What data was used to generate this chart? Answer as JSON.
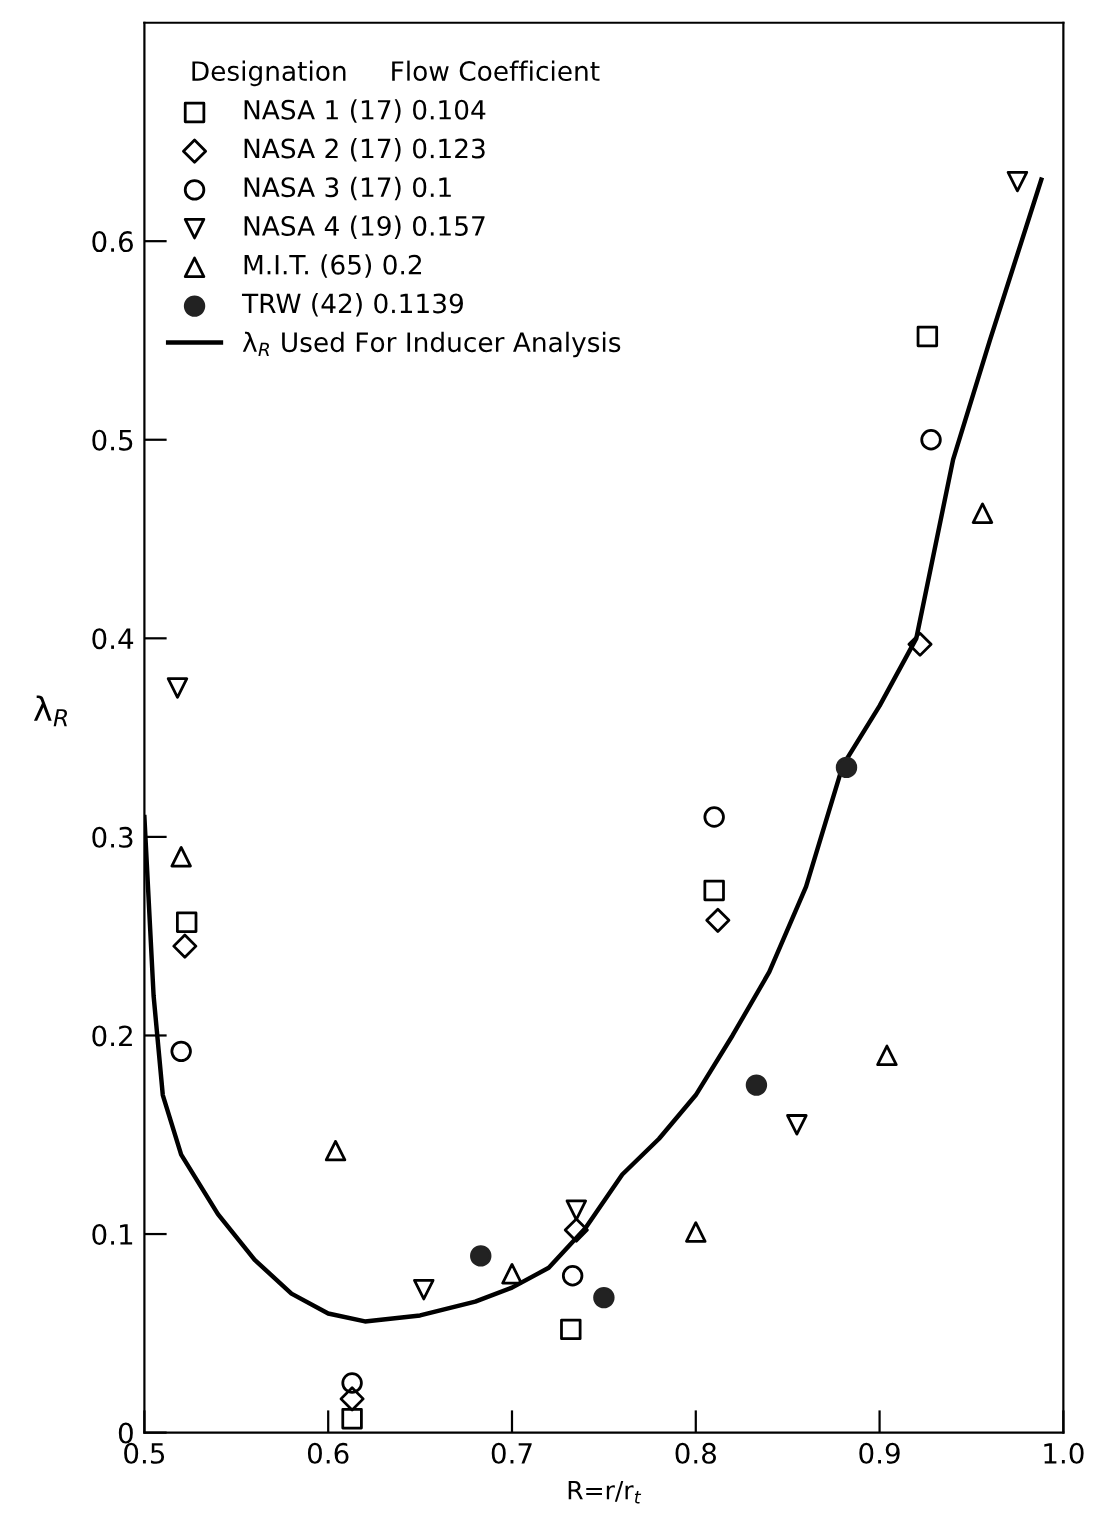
{
  "chart_data": {
    "type": "scatter",
    "xlabel": "R=r/r$_{t}$",
    "ylabel": "λ$_{R}$",
    "legend_title": "Designation     Flow Coefficient",
    "legend": "top left",
    "grid": false,
    "xlim": [
      0.5,
      1.0
    ],
    "ylim": [
      0,
      0.71
    ],
    "xticks": [
      0.5,
      0.6,
      0.7,
      0.8,
      0.9,
      {
        "value": 1,
        "label": "1.0"
      }
    ],
    "yticks": [
      0,
      0.1,
      0.2,
      0.3,
      0.4,
      0.5,
      0.6
    ],
    "series": [
      {
        "name": "NASA 1 (17) 0.104",
        "color": "#000000",
        "marker": "square",
        "x": [
          0.523,
          0.613,
          0.732,
          0.81,
          0.926
        ],
        "values": [
          0.257,
          0.007,
          0.052,
          0.273,
          0.552
        ]
      },
      {
        "name": "NASA 2 (17) 0.123",
        "color": "#000000",
        "marker": "diamond",
        "x": [
          0.522,
          0.613,
          0.735,
          0.812,
          0.922
        ],
        "values": [
          0.245,
          0.017,
          0.102,
          0.258,
          0.397
        ]
      },
      {
        "name": "NASA 3 (17) 0.1",
        "color": "#000000",
        "marker": "circle",
        "x": [
          0.52,
          0.613,
          0.733,
          0.81,
          0.928
        ],
        "values": [
          0.192,
          0.025,
          0.079,
          0.31,
          0.5
        ]
      },
      {
        "name": "NASA 4 (19) 0.157",
        "color": "#000000",
        "marker": "triangle_down",
        "x": [
          0.518,
          0.652,
          0.735,
          0.855,
          0.975
        ],
        "values": [
          0.375,
          0.072,
          0.112,
          0.155,
          0.63
        ]
      },
      {
        "name": "M.I.T. (65) 0.2",
        "color": "#000000",
        "marker": "triangle",
        "x": [
          0.52,
          0.604,
          0.7,
          0.8,
          0.904,
          0.956
        ],
        "values": [
          0.29,
          0.142,
          0.08,
          0.101,
          0.19,
          0.463
        ]
      },
      {
        "name": "TRW (42) 0.1139",
        "color": "#222222",
        "marker": "filled_circle",
        "x": [
          0.683,
          0.75,
          0.833,
          0.882
        ],
        "values": [
          0.089,
          0.068,
          0.175,
          0.335
        ]
      },
      {
        "name": "λ$_{R}$ Used For Inducer Analysis",
        "color": "#000000",
        "type": "line",
        "marker": "none",
        "line_style": "solid",
        "x": [
          0.5,
          0.505,
          0.51,
          0.52,
          0.54,
          0.56,
          0.58,
          0.6,
          0.62,
          0.65,
          0.68,
          0.7,
          0.72,
          0.74,
          0.76,
          0.78,
          0.8,
          0.82,
          0.84,
          0.86,
          0.88,
          0.9,
          0.92,
          0.94,
          0.96,
          0.988
        ],
        "values": [
          0.31,
          0.22,
          0.17,
          0.14,
          0.11,
          0.087,
          0.07,
          0.06,
          0.056,
          0.059,
          0.066,
          0.073,
          0.083,
          0.103,
          0.13,
          0.148,
          0.17,
          0.2,
          0.232,
          0.275,
          0.336,
          0.366,
          0.4,
          0.49,
          0.55,
          0.631
        ]
      }
    ]
  }
}
